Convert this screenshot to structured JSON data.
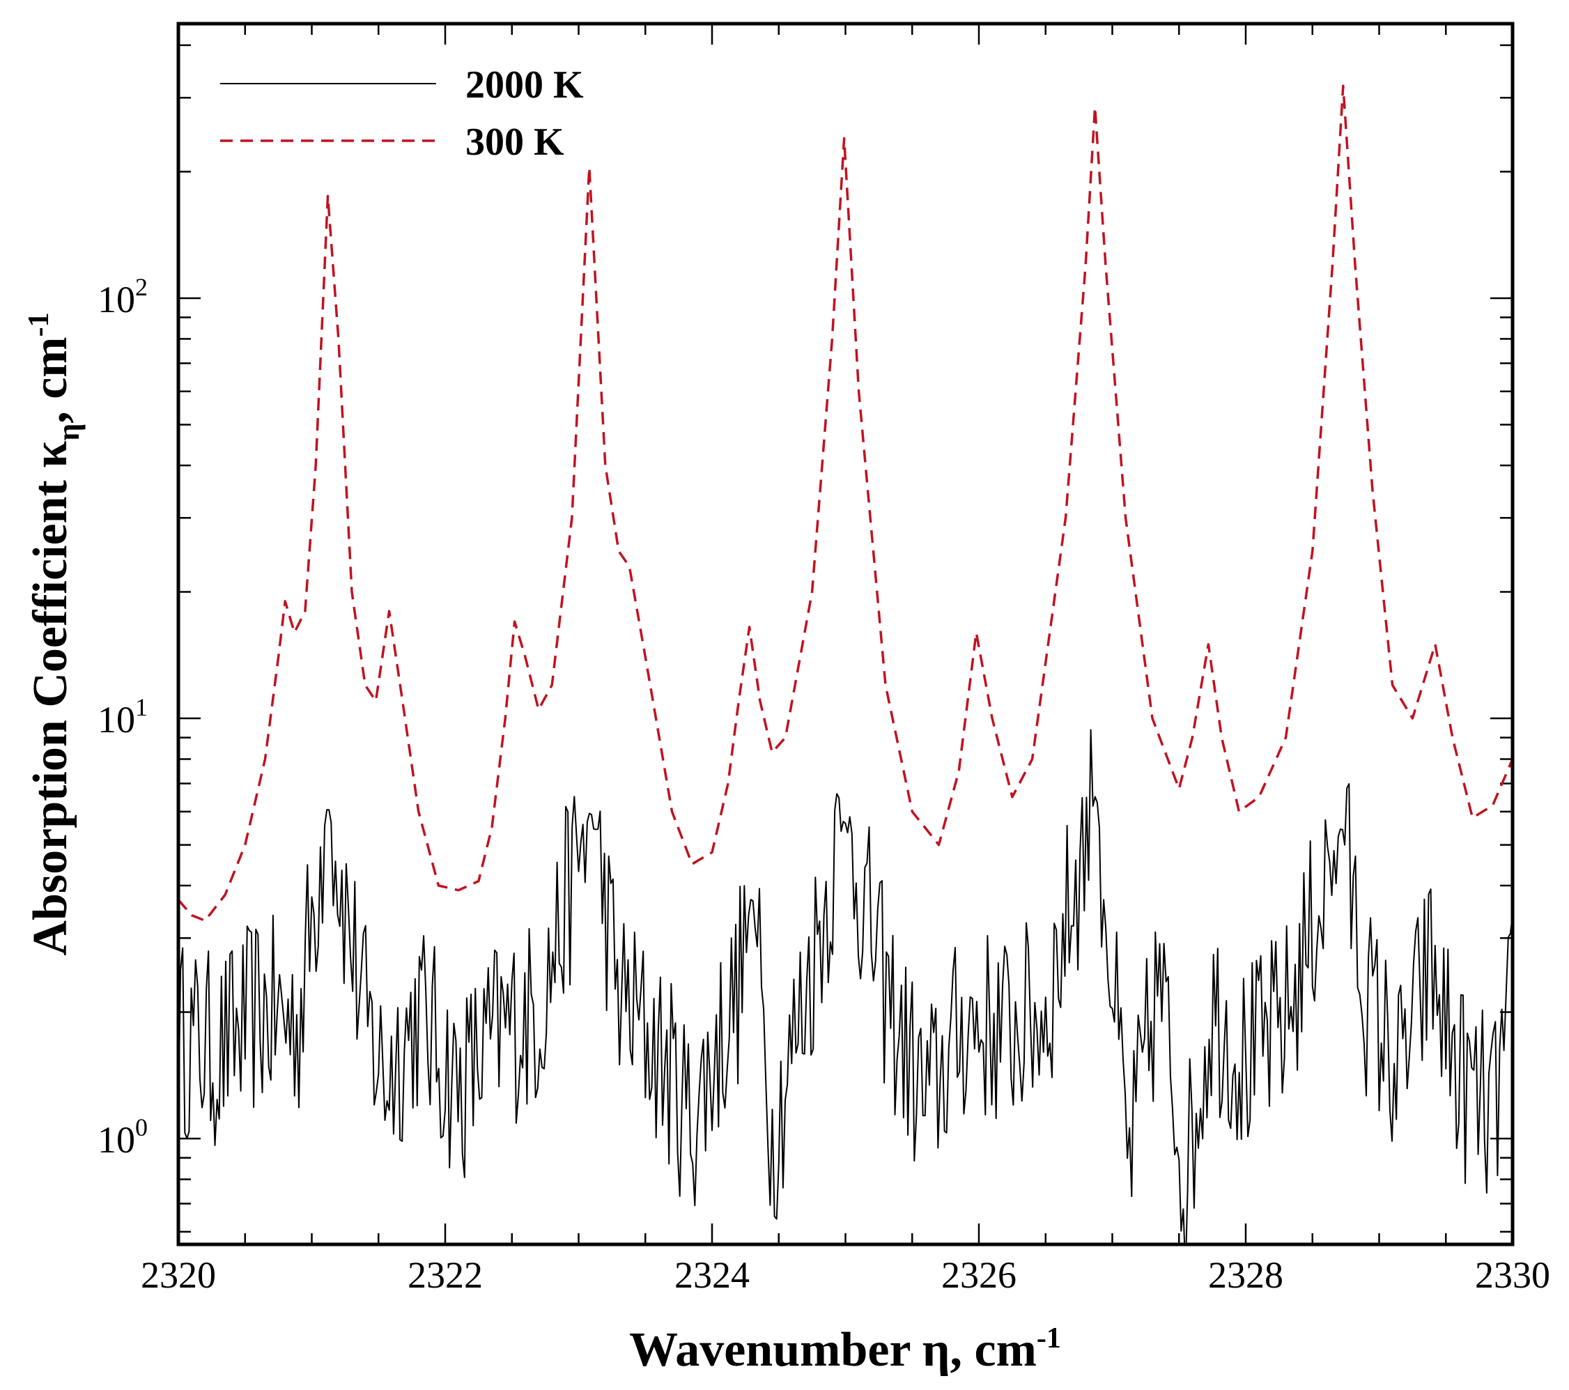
{
  "chart_data": {
    "type": "line",
    "scale": {
      "x": "linear",
      "y": "log"
    },
    "xlabel": "Wavenumber η, cm",
    "xlabel_sup": "-1",
    "ylabel": "Absorption Coefficient κ",
    "ylabel_sub": "η",
    "ylabel_tail": ", cm",
    "ylabel_sup": "-1",
    "xlim": [
      2320,
      2330
    ],
    "ylim": [
      0.56,
      450
    ],
    "xticks": [
      {
        "value": 2320,
        "label": "2320"
      },
      {
        "value": 2322,
        "label": "2322"
      },
      {
        "value": 2324,
        "label": "2324"
      },
      {
        "value": 2326,
        "label": "2326"
      },
      {
        "value": 2328,
        "label": "2328"
      },
      {
        "value": 2330,
        "label": "2330"
      }
    ],
    "yticks": [
      {
        "value": 1,
        "base": "10",
        "exp": "0"
      },
      {
        "value": 10,
        "base": "10",
        "exp": "1"
      },
      {
        "value": 100,
        "base": "10",
        "exp": "2"
      }
    ],
    "legend": {
      "position": "top-left"
    },
    "series": [
      {
        "name": "2000 K",
        "color": "#000000",
        "style": "solid",
        "noise_amp": 0.24,
        "points": [
          [
            2320.0,
            1.75
          ],
          [
            2320.3,
            1.6
          ],
          [
            2320.6,
            2.0
          ],
          [
            2320.9,
            1.9
          ],
          [
            2321.12,
            6.3
          ],
          [
            2321.4,
            1.9
          ],
          [
            2321.55,
            1.4
          ],
          [
            2321.8,
            2.0
          ],
          [
            2322.1,
            1.3
          ],
          [
            2322.4,
            1.8
          ],
          [
            2322.7,
            2.0
          ],
          [
            2323.09,
            6.1
          ],
          [
            2323.3,
            2.2
          ],
          [
            2323.6,
            1.6
          ],
          [
            2323.85,
            1.1
          ],
          [
            2324.2,
            2.3
          ],
          [
            2324.3,
            3.9
          ],
          [
            2324.45,
            1.0
          ],
          [
            2324.6,
            1.6
          ],
          [
            2324.99,
            5.8
          ],
          [
            2325.3,
            2.2
          ],
          [
            2325.6,
            1.2
          ],
          [
            2325.9,
            1.9
          ],
          [
            2326.2,
            1.8
          ],
          [
            2326.5,
            2.0
          ],
          [
            2326.88,
            6.7
          ],
          [
            2327.12,
            0.85
          ],
          [
            2327.35,
            2.4
          ],
          [
            2327.55,
            0.8
          ],
          [
            2327.75,
            2.1
          ],
          [
            2328.0,
            1.5
          ],
          [
            2328.3,
            1.9
          ],
          [
            2328.72,
            5.6
          ],
          [
            2328.9,
            2.2
          ],
          [
            2329.15,
            1.4
          ],
          [
            2329.38,
            2.6
          ],
          [
            2329.6,
            1.4
          ],
          [
            2329.85,
            1.1
          ],
          [
            2330.0,
            2.1
          ]
        ]
      },
      {
        "name": "300 K",
        "color": "#c1121f",
        "style": "dashed",
        "points": [
          [
            2320.0,
            3.7
          ],
          [
            2320.1,
            3.4
          ],
          [
            2320.2,
            3.3
          ],
          [
            2320.35,
            3.8
          ],
          [
            2320.5,
            5.0
          ],
          [
            2320.65,
            8.0
          ],
          [
            2320.75,
            14.0
          ],
          [
            2320.8,
            19.0
          ],
          [
            2320.87,
            16.0
          ],
          [
            2320.95,
            18.0
          ],
          [
            2321.03,
            40.0
          ],
          [
            2321.12,
            175.0
          ],
          [
            2321.2,
            80.0
          ],
          [
            2321.3,
            20.0
          ],
          [
            2321.4,
            12.0
          ],
          [
            2321.48,
            11.0
          ],
          [
            2321.58,
            18.0
          ],
          [
            2321.68,
            11.0
          ],
          [
            2321.8,
            6.0
          ],
          [
            2321.95,
            4.0
          ],
          [
            2322.1,
            3.9
          ],
          [
            2322.25,
            4.1
          ],
          [
            2322.35,
            5.5
          ],
          [
            2322.45,
            10.0
          ],
          [
            2322.52,
            17.0
          ],
          [
            2322.6,
            14.0
          ],
          [
            2322.7,
            10.5
          ],
          [
            2322.8,
            12.0
          ],
          [
            2322.95,
            30.0
          ],
          [
            2323.08,
            205.0
          ],
          [
            2323.2,
            40.0
          ],
          [
            2323.3,
            25.0
          ],
          [
            2323.38,
            23.0
          ],
          [
            2323.5,
            14.0
          ],
          [
            2323.7,
            6.0
          ],
          [
            2323.85,
            4.5
          ],
          [
            2324.0,
            4.8
          ],
          [
            2324.12,
            7.0
          ],
          [
            2324.2,
            11.0
          ],
          [
            2324.28,
            16.5
          ],
          [
            2324.36,
            11.0
          ],
          [
            2324.45,
            8.3
          ],
          [
            2324.55,
            9.0
          ],
          [
            2324.75,
            20.0
          ],
          [
            2324.9,
            80.0
          ],
          [
            2324.99,
            240.0
          ],
          [
            2325.1,
            60.0
          ],
          [
            2325.3,
            12.0
          ],
          [
            2325.5,
            6.0
          ],
          [
            2325.7,
            5.0
          ],
          [
            2325.85,
            7.5
          ],
          [
            2325.98,
            16.0
          ],
          [
            2326.1,
            10.0
          ],
          [
            2326.25,
            6.5
          ],
          [
            2326.4,
            8.0
          ],
          [
            2326.65,
            30.0
          ],
          [
            2326.8,
            120.0
          ],
          [
            2326.87,
            285.0
          ],
          [
            2326.95,
            120.0
          ],
          [
            2327.1,
            30.0
          ],
          [
            2327.3,
            10.0
          ],
          [
            2327.5,
            6.8
          ],
          [
            2327.6,
            9.0
          ],
          [
            2327.72,
            15.0
          ],
          [
            2327.82,
            9.0
          ],
          [
            2327.95,
            6.0
          ],
          [
            2328.1,
            6.5
          ],
          [
            2328.3,
            9.0
          ],
          [
            2328.5,
            25.0
          ],
          [
            2328.65,
            120.0
          ],
          [
            2328.73,
            320.0
          ],
          [
            2328.82,
            120.0
          ],
          [
            2328.95,
            35.0
          ],
          [
            2329.1,
            12.0
          ],
          [
            2329.25,
            10.0
          ],
          [
            2329.42,
            15.0
          ],
          [
            2329.55,
            9.0
          ],
          [
            2329.7,
            5.8
          ],
          [
            2329.85,
            6.2
          ],
          [
            2330.0,
            8.0
          ]
        ]
      }
    ]
  }
}
